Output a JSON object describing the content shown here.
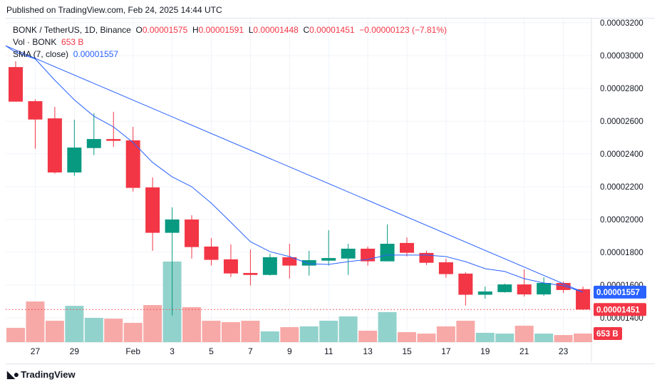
{
  "published": "Published on TradingView.com, Feb 24, 2025 14:44 UTC",
  "legend": {
    "symbol": "BONK / TetherUS, 1D, Binance",
    "o_label": "O",
    "o": "0.00001575",
    "h_label": "H",
    "h": "0.00001591",
    "l_label": "L",
    "l": "0.00001448",
    "c_label": "C",
    "c": "0.00001451",
    "change": "−0.00000123 (−7.81%)",
    "vol_label": "Vol · BONK",
    "vol": "653 B",
    "sma_label": "SMA (7, close)",
    "sma": "0.00001557"
  },
  "logo": "TradingView",
  "colors": {
    "up": "#089981",
    "down": "#f23645",
    "up_vol": "#92d2cc",
    "down_vol": "#f7a9a7",
    "sma": "#2962ff"
  },
  "chart_data": {
    "type": "candlestick",
    "price_unit": "1e-6 USDT",
    "ylim": [
      13.2,
      32.6
    ],
    "y_ticks": [
      "0.00003200",
      "0.00003000",
      "0.00002800",
      "0.00002600",
      "0.00002400",
      "0.00002200",
      "0.00002000",
      "0.00001800",
      "0.00001600",
      "0.00001400"
    ],
    "y_tick_values": [
      32,
      30,
      28,
      26,
      24,
      22,
      20,
      18,
      16,
      14
    ],
    "x_tick_labels": [
      "27",
      "29",
      "Feb",
      "3",
      "5",
      "7",
      "9",
      "11",
      "13",
      "15",
      "17",
      "19",
      "21",
      "23"
    ],
    "x_tick_index": [
      1,
      3,
      6,
      8,
      10,
      12,
      14,
      16,
      18,
      20,
      22,
      24,
      26,
      28
    ],
    "dates": [
      "Jan 26",
      "Jan 27",
      "Jan 28",
      "Jan 29",
      "Jan 30",
      "Jan 31",
      "Feb 1",
      "Feb 2",
      "Feb 3",
      "Feb 4",
      "Feb 5",
      "Feb 6",
      "Feb 7",
      "Feb 8",
      "Feb 9",
      "Feb 10",
      "Feb 11",
      "Feb 12",
      "Feb 13",
      "Feb 14",
      "Feb 15",
      "Feb 16",
      "Feb 17",
      "Feb 18",
      "Feb 19",
      "Feb 20",
      "Feb 21",
      "Feb 22",
      "Feb 23",
      "Feb 24"
    ],
    "ohlc": [
      [
        29.3,
        29.65,
        27.19,
        27.19
      ],
      [
        27.22,
        27.33,
        24.32,
        26.1
      ],
      [
        26.17,
        26.87,
        22.8,
        22.87
      ],
      [
        22.87,
        26.09,
        22.67,
        24.39
      ],
      [
        24.36,
        26.48,
        23.93,
        24.91
      ],
      [
        24.91,
        26.57,
        24.43,
        24.8
      ],
      [
        24.83,
        25.65,
        21.71,
        21.93
      ],
      [
        21.96,
        22.57,
        18.09,
        19.19
      ],
      [
        19.19,
        20.74,
        14.14,
        20.0
      ],
      [
        20.0,
        20.26,
        17.62,
        18.32
      ],
      [
        18.35,
        18.87,
        17.19,
        17.54
      ],
      [
        17.57,
        18.48,
        16.49,
        16.71
      ],
      [
        16.74,
        18.17,
        15.97,
        16.62
      ],
      [
        16.62,
        17.91,
        16.58,
        17.7
      ],
      [
        17.7,
        18.52,
        16.4,
        17.19
      ],
      [
        17.19,
        18.09,
        16.58,
        17.52
      ],
      [
        17.49,
        19.35,
        17.19,
        17.65
      ],
      [
        17.62,
        18.52,
        16.62,
        18.22
      ],
      [
        18.22,
        18.35,
        17.19,
        17.45
      ],
      [
        17.45,
        19.7,
        17.45,
        18.52
      ],
      [
        18.57,
        18.91,
        17.75,
        17.97
      ],
      [
        17.96,
        18.09,
        17.23,
        17.36
      ],
      [
        17.39,
        17.61,
        16.45,
        16.67
      ],
      [
        16.7,
        16.78,
        14.75,
        15.41
      ],
      [
        15.41,
        15.91,
        15.17,
        15.61
      ],
      [
        15.57,
        16.09,
        15.54,
        16.04
      ],
      [
        16.04,
        16.96,
        15.3,
        15.43
      ],
      [
        15.43,
        16.48,
        15.35,
        16.13
      ],
      [
        16.13,
        16.22,
        15.52,
        15.7
      ],
      [
        15.75,
        15.91,
        14.48,
        14.51
      ]
    ],
    "volume_B": [
      1090,
      3100,
      1630,
      2770,
      1850,
      1790,
      1470,
      2830,
      6150,
      2670,
      1630,
      1520,
      1630,
      820,
      1140,
      1200,
      1630,
      1960,
      870,
      2290,
      760,
      650,
      1200,
      1630,
      710,
      650,
      1250,
      650,
      540,
      653
    ],
    "sma7": [
      30.2,
      29.8,
      28.5,
      27.3,
      26.3,
      25.65,
      24.7,
      23.48,
      22.6,
      22.0,
      21.0,
      19.83,
      18.65,
      18.04,
      17.74,
      17.3,
      17.26,
      17.43,
      17.57,
      17.83,
      17.83,
      17.83,
      17.74,
      17.43,
      17.0,
      16.83,
      16.39,
      16.13,
      15.96,
      15.57
    ],
    "last_price_label": "0.00001451",
    "sma_label": "0.00001557",
    "volume_label": "653 B",
    "grid": true
  }
}
